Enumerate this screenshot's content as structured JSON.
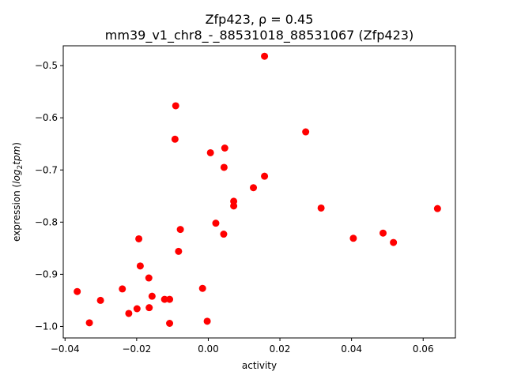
{
  "chart_data": {
    "type": "scatter",
    "title_line1": "Zfp423, ρ = 0.45",
    "title_line2": "mm39_v1_chr8_-_88531018_88531067 (Zfp423)",
    "xlabel": "activity",
    "ylabel_prefix": "expression (",
    "ylabel_math": "log",
    "ylabel_sub": "2",
    "ylabel_math2": "tpm",
    "ylabel_suffix": ")",
    "xlim": [
      -0.0405,
      0.069
    ],
    "ylim": [
      -1.022,
      -0.462
    ],
    "xticks": [
      {
        "v": -0.04,
        "label": "−0.04"
      },
      {
        "v": -0.02,
        "label": "−0.02"
      },
      {
        "v": 0.0,
        "label": "0.00"
      },
      {
        "v": 0.02,
        "label": "0.02"
      },
      {
        "v": 0.04,
        "label": "0.04"
      },
      {
        "v": 0.06,
        "label": "0.06"
      }
    ],
    "yticks": [
      {
        "v": -1.0,
        "label": "−1.0"
      },
      {
        "v": -0.9,
        "label": "−0.9"
      },
      {
        "v": -0.8,
        "label": "−0.8"
      },
      {
        "v": -0.7,
        "label": "−0.7"
      },
      {
        "v": -0.6,
        "label": "−0.6"
      },
      {
        "v": -0.5,
        "label": "−0.5"
      }
    ],
    "marker_color": "#ff0000",
    "points": [
      {
        "x": 0.0157,
        "y": -0.482
      },
      {
        "x": -0.0091,
        "y": -0.577
      },
      {
        "x": 0.0272,
        "y": -0.627
      },
      {
        "x": -0.0093,
        "y": -0.641
      },
      {
        "x": 0.0046,
        "y": -0.658
      },
      {
        "x": 0.0006,
        "y": -0.667
      },
      {
        "x": 0.0044,
        "y": -0.695
      },
      {
        "x": 0.0157,
        "y": -0.712
      },
      {
        "x": 0.0126,
        "y": -0.734
      },
      {
        "x": 0.0071,
        "y": -0.76
      },
      {
        "x": 0.0071,
        "y": -0.769
      },
      {
        "x": 0.0315,
        "y": -0.773
      },
      {
        "x": 0.064,
        "y": -0.774
      },
      {
        "x": 0.0021,
        "y": -0.802
      },
      {
        "x": -0.0078,
        "y": -0.814
      },
      {
        "x": 0.0043,
        "y": -0.823
      },
      {
        "x": 0.0488,
        "y": -0.821
      },
      {
        "x": 0.0405,
        "y": -0.831
      },
      {
        "x": 0.0517,
        "y": -0.839
      },
      {
        "x": -0.0194,
        "y": -0.832
      },
      {
        "x": -0.0083,
        "y": -0.856
      },
      {
        "x": -0.019,
        "y": -0.884
      },
      {
        "x": -0.0166,
        "y": -0.907
      },
      {
        "x": -0.024,
        "y": -0.928
      },
      {
        "x": -0.0016,
        "y": -0.927
      },
      {
        "x": -0.0366,
        "y": -0.933
      },
      {
        "x": -0.0157,
        "y": -0.942
      },
      {
        "x": -0.0122,
        "y": -0.948
      },
      {
        "x": -0.0108,
        "y": -0.948
      },
      {
        "x": -0.0301,
        "y": -0.95
      },
      {
        "x": -0.0165,
        "y": -0.964
      },
      {
        "x": -0.0199,
        "y": -0.966
      },
      {
        "x": -0.0222,
        "y": -0.975
      },
      {
        "x": -0.0332,
        "y": -0.993
      },
      {
        "x": -0.0108,
        "y": -0.994
      },
      {
        "x": -0.0003,
        "y": -0.99
      }
    ]
  }
}
